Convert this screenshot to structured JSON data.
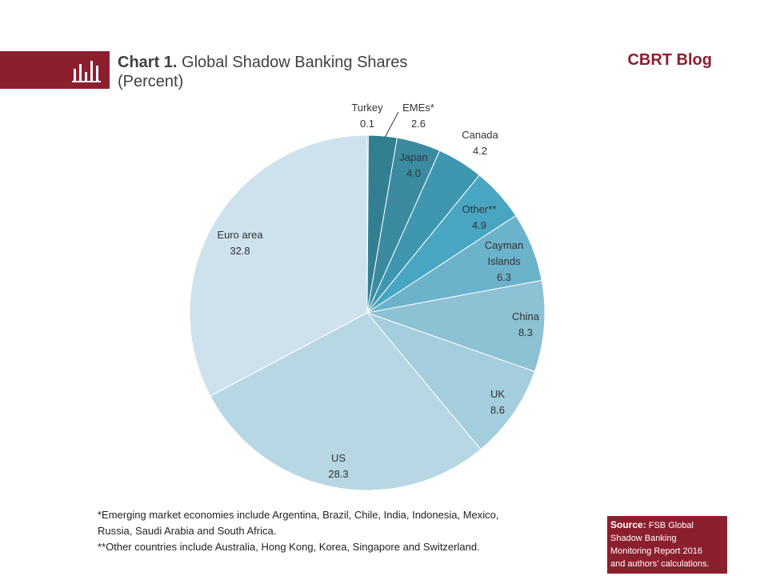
{
  "header": {
    "chart_number": "Chart 1.",
    "title": "Global Shadow Banking Shares",
    "subtitle": "(Percent)",
    "brand": "CBRT Blog",
    "icon": "bar-chart-icon"
  },
  "footnotes": {
    "line1": "*Emerging market economies include Argentina, Brazil, Chile, India, Indonesia, Mexico,",
    "line2": "Russia, Saudi Arabia and South  Africa.",
    "line3": "**Other countries include Australia, Hong Kong, Korea, Singapore and Switzerland."
  },
  "source": {
    "label": "Source:",
    "line1": "FSB Global",
    "line2": "Shadow Banking",
    "line3": "Monitoring Report 2016",
    "line4": "and authors’ calculations."
  },
  "colors": {
    "brand": "#8c1f2e",
    "leader_line": "#333333"
  },
  "chart_data": {
    "type": "pie",
    "title": "Global Shadow Banking Shares",
    "subtitle": "(Percent)",
    "start": "12 o'clock",
    "direction": "clockwise",
    "slices": [
      {
        "label": "Turkey",
        "value": 0.1,
        "color": "#2f6f80"
      },
      {
        "label": "EMEs*",
        "value": 2.6,
        "color": "#327f92"
      },
      {
        "label": "Japan",
        "value": 4.0,
        "color": "#3a8ba0"
      },
      {
        "label": "Canada",
        "value": 4.2,
        "color": "#3e97ae"
      },
      {
        "label": "Other**",
        "value": 4.9,
        "color": "#48a6c2"
      },
      {
        "label": "Cayman Islands",
        "value": 6.3,
        "color": "#6bb3cb"
      },
      {
        "label": "China",
        "value": 8.3,
        "color": "#8dc1d4"
      },
      {
        "label": "UK",
        "value": 8.6,
        "color": "#a4cdde"
      },
      {
        "label": "US",
        "value": 28.3,
        "color": "#b7d7e4"
      },
      {
        "label": "Euro area",
        "value": 32.8,
        "color": "#cde2ec"
      }
    ]
  }
}
